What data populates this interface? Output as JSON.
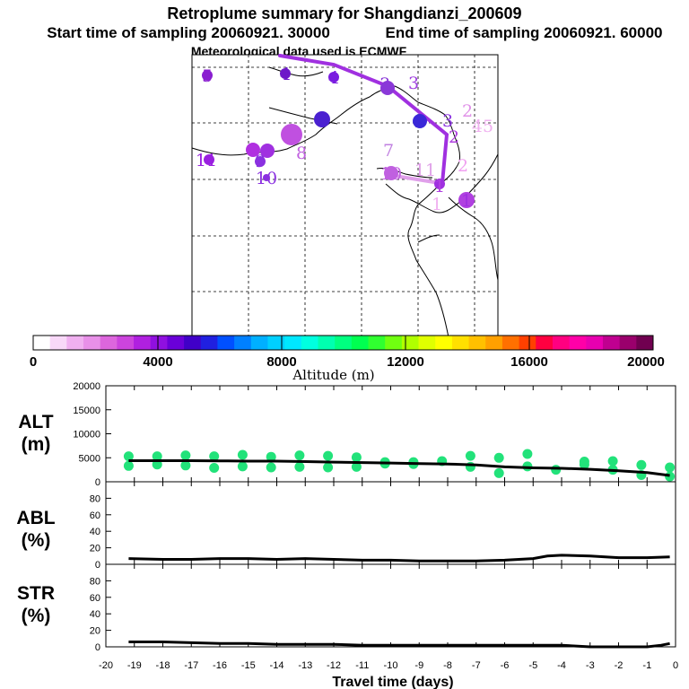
{
  "header": {
    "title": "Retroplume summary for Shangdianzi_200609",
    "start_time": "Start time of sampling 20060921. 30000",
    "end_time": "End time of sampling 20060921. 60000",
    "met_data": "Meteorological data used is ECMWF"
  },
  "colorbar": {
    "label": "Altitude (m)",
    "tick_labels": [
      "0",
      "4000",
      "8000",
      "12000",
      "16000",
      "20000"
    ],
    "colors": [
      "#ffffff",
      "#f8d8f8",
      "#f0b0f0",
      "#e890e8",
      "#dd66dd",
      "#cc44dd",
      "#b020e0",
      "#9010e0",
      "#6a00d8",
      "#4000c8",
      "#2020e0",
      "#0050ff",
      "#0080ff",
      "#00b0ff",
      "#00d0ff",
      "#00e8ff",
      "#00ffe0",
      "#00ffb0",
      "#00ff80",
      "#00ff50",
      "#30ff30",
      "#70ff10",
      "#b0ff00",
      "#e0ff00",
      "#ffff00",
      "#ffe000",
      "#ffc000",
      "#ffa000",
      "#ff7000",
      "#ff4000",
      "#ff0040",
      "#ff0080",
      "#ff00a8",
      "#e800b0",
      "#c00090",
      "#9a006c",
      "#700050"
    ]
  },
  "chart_data": {
    "type": "line",
    "title": "Retroplume summary for Shangdianzi_200609",
    "xlabel": "Travel time (days)",
    "xlim": [
      -20,
      0
    ],
    "x_tick_labels": [
      "-20",
      "-19",
      "-18",
      "-17",
      "-16",
      "-15",
      "-14",
      "-13",
      "-12",
      "-11",
      "-10",
      "-9",
      "-8",
      "-7",
      "-6",
      "-5",
      "-4",
      "-3",
      "-2",
      "-1",
      "0"
    ],
    "panels": [
      {
        "name": "ALT",
        "label_line1": "ALT",
        "label_line2": "(m)",
        "ylim": [
          0,
          20000
        ],
        "y_tick_labels": [
          "0",
          "5000",
          "10000",
          "15000",
          "20000"
        ],
        "mean_line": {
          "x": [
            -19.2,
            -18,
            -17,
            -16,
            -15,
            -14,
            -13,
            -12,
            -11,
            -10,
            -9,
            -8,
            -7,
            -6,
            -5,
            -4,
            -3,
            -2,
            -1,
            -0.2
          ],
          "y": [
            4400,
            4400,
            4400,
            4350,
            4300,
            4300,
            4200,
            4100,
            4000,
            3900,
            3800,
            3700,
            3500,
            3100,
            2900,
            2800,
            2600,
            2300,
            1900,
            1300
          ]
        },
        "scatter": {
          "x": [
            -19.2,
            -19.2,
            -18.2,
            -18.2,
            -17.2,
            -17.2,
            -16.2,
            -16.2,
            -15.2,
            -15.2,
            -14.2,
            -14.2,
            -13.2,
            -13.2,
            -12.2,
            -12.2,
            -11.2,
            -11.2,
            -10.2,
            -10.2,
            -9.2,
            -9.2,
            -8.2,
            -7.2,
            -7.2,
            -6.2,
            -6.2,
            -5.2,
            -5.2,
            -4.2,
            -3.2,
            -3.2,
            -2.2,
            -2.2,
            -1.2,
            -1.2,
            -0.2,
            -0.2
          ],
          "y": [
            5300,
            3300,
            5300,
            3600,
            5500,
            3400,
            5300,
            2900,
            5600,
            3200,
            5200,
            3000,
            5500,
            3100,
            5400,
            3000,
            5100,
            3100,
            4100,
            3800,
            4100,
            3700,
            4300,
            5400,
            3100,
            5000,
            1800,
            5800,
            3200,
            2500,
            4200,
            3600,
            4300,
            2500,
            3500,
            1400,
            3000,
            1100
          ],
          "color": "#22e27a"
        }
      },
      {
        "name": "ABL",
        "label_line1": "ABL",
        "label_line2": "(%)",
        "ylim": [
          0,
          100
        ],
        "y_tick_labels": [
          "0",
          "20",
          "40",
          "60",
          "80"
        ],
        "line": {
          "x": [
            -19.2,
            -18,
            -17,
            -16,
            -15,
            -14,
            -13,
            -12,
            -11,
            -10,
            -9,
            -8,
            -7,
            -6,
            -5,
            -4.5,
            -4,
            -3,
            -2,
            -1,
            -0.2
          ],
          "y": [
            7,
            6,
            6,
            7,
            7,
            6,
            7,
            6,
            5,
            5,
            4,
            4,
            4,
            5,
            7,
            10,
            11,
            10,
            8,
            8,
            9
          ]
        }
      },
      {
        "name": "STR",
        "label_line1": "STR",
        "label_line2": "(%)",
        "ylim": [
          0,
          100
        ],
        "y_tick_labels": [
          "0",
          "20",
          "40",
          "60",
          "80"
        ],
        "line": {
          "x": [
            -19.2,
            -18,
            -17,
            -16,
            -15,
            -14,
            -13,
            -12,
            -11,
            -10,
            -9,
            -8,
            -7,
            -6,
            -5,
            -4,
            -3.5,
            -3,
            -2,
            -1,
            -0.5,
            -0.2
          ],
          "y": [
            6,
            6,
            5,
            4,
            4,
            3,
            3,
            3,
            2,
            2,
            2,
            2,
            2,
            2,
            2,
            2,
            1,
            0,
            0,
            0,
            2,
            4
          ]
        }
      }
    ]
  },
  "map": {
    "numbers": [
      {
        "label": "5",
        "color": "#8a1ed0"
      },
      {
        "label": "4",
        "color": "#6d18c8"
      },
      {
        "label": "4",
        "color": "#7a1ce0"
      },
      {
        "label": "3",
        "color": "#8a38d8"
      },
      {
        "label": "3",
        "color": "#a040e0"
      },
      {
        "label": "3",
        "color": "#4a20d0"
      },
      {
        "label": "2",
        "color": "#3a28d8"
      },
      {
        "label": "3",
        "color": "#8a30e0"
      },
      {
        "label": "2",
        "color": "#e090e8"
      },
      {
        "label": "2",
        "color": "#b040e0"
      },
      {
        "label": "45",
        "color": "#f0b0f0"
      },
      {
        "label": "4",
        "color": "#c050e0"
      },
      {
        "label": "6",
        "color": "#b030e0"
      },
      {
        "label": "5",
        "color": "#a030e0"
      },
      {
        "label": "9",
        "color": "#8a30e0"
      },
      {
        "label": "8",
        "color": "#c060e0"
      },
      {
        "label": "11",
        "color": "#9a20e0"
      },
      {
        "label": "10",
        "color": "#8a30e0"
      },
      {
        "label": "7",
        "color": "#c080e0"
      },
      {
        "label": "10",
        "color": "#c060e0"
      },
      {
        "label": "11",
        "color": "#e0a0e8"
      },
      {
        "label": "1",
        "color": "#b040e0"
      },
      {
        "label": "2",
        "color": "#f0a0f0"
      },
      {
        "label": "1",
        "color": "#f0b0f0"
      },
      {
        "label": "1",
        "color": "#a030e0"
      }
    ]
  }
}
